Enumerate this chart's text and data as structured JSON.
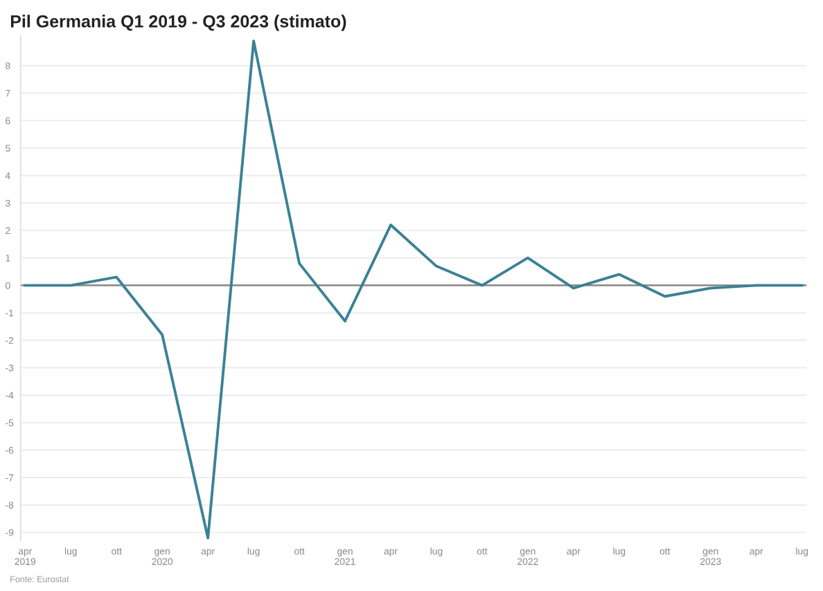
{
  "chart_data": {
    "type": "line",
    "title": "Pil Germania Q1 2019 - Q3 2023 (stimato)",
    "categories": [
      "apr\n2019",
      "lug",
      "ott",
      "gen\n2020",
      "apr",
      "lug",
      "ott",
      "gen\n2021",
      "apr",
      "lug",
      "ott",
      "gen\n2022",
      "apr",
      "lug",
      "ott",
      "gen\n2023",
      "apr",
      "lug"
    ],
    "series": [
      {
        "color": "#3b8196",
        "values": [
          0,
          0,
          0.3,
          -1.8,
          -9.2,
          8.9,
          0.8,
          -1.3,
          2.2,
          0.7,
          0,
          1.0,
          -0.1,
          0.4,
          -0.4,
          -0.1,
          0,
          0
        ]
      }
    ],
    "ylim": [
      -9.3,
      9.1
    ],
    "yticks": [
      -9,
      -8,
      -7,
      -6,
      -5,
      -4,
      -3,
      -2,
      -1,
      0,
      1,
      2,
      3,
      4,
      5,
      6,
      7,
      8
    ],
    "grid": "y",
    "ref_lines": [
      {
        "axis": "y",
        "value": 0,
        "color": "#888888"
      }
    ],
    "annotations": [
      "Fonte: Eurostat"
    ]
  }
}
